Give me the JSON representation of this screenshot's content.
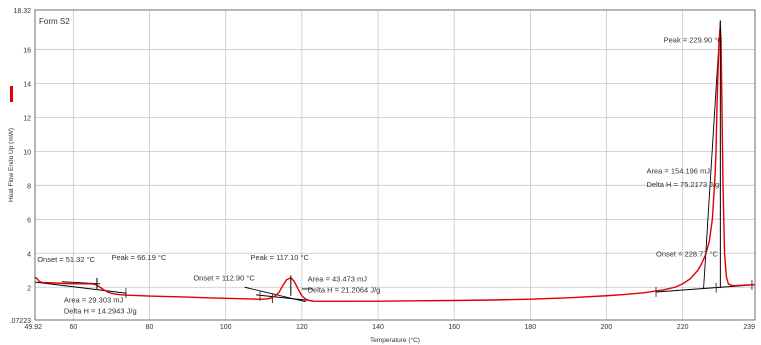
{
  "chart_data": {
    "type": "line",
    "panel_label": "Form S2",
    "xlabel": "Temperature (°C)",
    "ylabel": "Heat Flow Endo Up (mW)",
    "xlim": [
      49.92,
      239
    ],
    "ylim": [
      0.07223,
      18.32
    ],
    "x_ticks": [
      {
        "value": 49.92,
        "label": "49.92"
      },
      {
        "value": 60,
        "label": "60"
      },
      {
        "value": 80,
        "label": "80"
      },
      {
        "value": 100,
        "label": "100"
      },
      {
        "value": 120,
        "label": "120"
      },
      {
        "value": 140,
        "label": "140"
      },
      {
        "value": 160,
        "label": "160"
      },
      {
        "value": 180,
        "label": "180"
      },
      {
        "value": 200,
        "label": "200"
      },
      {
        "value": 220,
        "label": "220"
      },
      {
        "value": 239,
        "label": "239"
      }
    ],
    "y_ticks": [
      {
        "value": 0.07223,
        "label": ".07223"
      },
      {
        "value": 2,
        "label": "2"
      },
      {
        "value": 4,
        "label": "4"
      },
      {
        "value": 6,
        "label": "6"
      },
      {
        "value": 8,
        "label": "8"
      },
      {
        "value": 10,
        "label": "10"
      },
      {
        "value": 12,
        "label": "12"
      },
      {
        "value": 14,
        "label": "14"
      },
      {
        "value": 16,
        "label": "16"
      },
      {
        "value": 18.32,
        "label": "18.32"
      }
    ],
    "grid": true,
    "series": [
      {
        "color": "#e00000",
        "x": [
          49.92,
          50.5,
          51,
          51.5,
          52,
          55,
          58,
          61,
          63,
          64.5,
          65.5,
          66.19,
          67,
          68,
          69,
          70,
          71,
          72,
          73,
          74,
          76,
          80,
          85,
          90,
          95,
          100,
          105,
          108,
          110,
          111,
          112,
          112.9,
          114,
          115,
          116,
          117.1,
          118,
          119,
          120,
          121,
          122,
          123,
          125,
          130,
          140,
          150,
          160,
          170,
          180,
          190,
          200,
          205,
          210,
          215,
          218,
          220,
          222,
          224,
          225,
          226,
          227,
          227.8,
          228.5,
          228.77,
          229,
          229.3,
          229.6,
          229.9,
          230.1,
          230.3,
          230.6,
          231,
          231.5,
          232,
          233,
          234,
          236,
          239
        ],
        "y": [
          2.6,
          2.5,
          2.35,
          2.3,
          2.28,
          2.25,
          2.22,
          2.2,
          2.2,
          2.2,
          2.18,
          2.12,
          2.0,
          1.85,
          1.72,
          1.64,
          1.6,
          1.57,
          1.55,
          1.53,
          1.52,
          1.48,
          1.45,
          1.42,
          1.38,
          1.35,
          1.32,
          1.3,
          1.3,
          1.32,
          1.38,
          1.48,
          1.7,
          2.1,
          2.45,
          2.55,
          2.35,
          1.9,
          1.5,
          1.3,
          1.22,
          1.18,
          1.17,
          1.17,
          1.18,
          1.2,
          1.22,
          1.25,
          1.3,
          1.38,
          1.5,
          1.58,
          1.68,
          1.85,
          2.0,
          2.2,
          2.5,
          3.0,
          3.4,
          3.9,
          4.7,
          6.0,
          8.5,
          10.0,
          12.5,
          14.8,
          16.5,
          17.4,
          16.2,
          13.0,
          8.0,
          4.0,
          2.6,
          2.2,
          2.1,
          2.1,
          2.12,
          2.15
        ]
      }
    ],
    "baselines": [
      {
        "x": [
          50,
          74
        ],
        "y": [
          2.3,
          1.65
        ]
      },
      {
        "x": [
          108,
          123
        ],
        "y": [
          1.55,
          1.2
        ]
      },
      {
        "x": [
          213,
          239
        ],
        "y": [
          1.72,
          2.15
        ]
      }
    ],
    "tangents": [
      {
        "x": [
          57,
          67
        ],
        "y": [
          2.33,
          2.2
        ]
      },
      {
        "x": [
          105,
          121
        ],
        "y": [
          2.0,
          1.15
        ]
      },
      {
        "x": [
          120,
          123
        ],
        "y": [
          1.9,
          1.9
        ]
      },
      {
        "x": [
          225.5,
          229.9
        ],
        "y": [
          1.95,
          17.7
        ]
      }
    ],
    "vertical_markers": [
      {
        "x": 66.19,
        "y": [
          1.9,
          2.55
        ]
      },
      {
        "x": 117.1,
        "y": [
          1.5,
          2.7
        ]
      },
      {
        "x": 229.9,
        "y": [
          1.95,
          17.7
        ]
      }
    ],
    "tick_markers": [
      {
        "x": 73.8,
        "y": 1.66
      },
      {
        "x": 109,
        "y": 1.5
      },
      {
        "x": 112.3,
        "y": 1.36
      },
      {
        "x": 213,
        "y": 1.73
      },
      {
        "x": 228.8,
        "y": 1.97
      },
      {
        "x": 238.2,
        "y": 2.14
      }
    ],
    "annotations": [
      {
        "x": 50.5,
        "y": 3.5,
        "text": "Onset = 51.32 °C"
      },
      {
        "x": 70,
        "y": 3.6,
        "text": "Peak = 66.19 °C"
      },
      {
        "x": 57.5,
        "y": 1.1,
        "text": "Area = 29.303 mJ"
      },
      {
        "x": 57.5,
        "y": 0.45,
        "text": "Delta H = 14.2943 J/g"
      },
      {
        "x": 91.5,
        "y": 2.4,
        "text": "Onset = 112.90 °C"
      },
      {
        "x": 106.5,
        "y": 3.6,
        "text": "Peak = 117.10 °C"
      },
      {
        "x": 121.5,
        "y": 2.35,
        "text": "Area = 43.473 mJ"
      },
      {
        "x": 121.5,
        "y": 1.7,
        "text": "Delta H = 21.2064 J/g"
      },
      {
        "x": 215,
        "y": 16.4,
        "text": "Peak = 229.90 °C"
      },
      {
        "x": 210.5,
        "y": 8.7,
        "text": "Area = 154.196 mJ"
      },
      {
        "x": 210.5,
        "y": 7.9,
        "text": "Delta H = 75.2173 J/g"
      },
      {
        "x": 213,
        "y": 3.8,
        "text": "Onset = 228.77 °C"
      }
    ]
  }
}
